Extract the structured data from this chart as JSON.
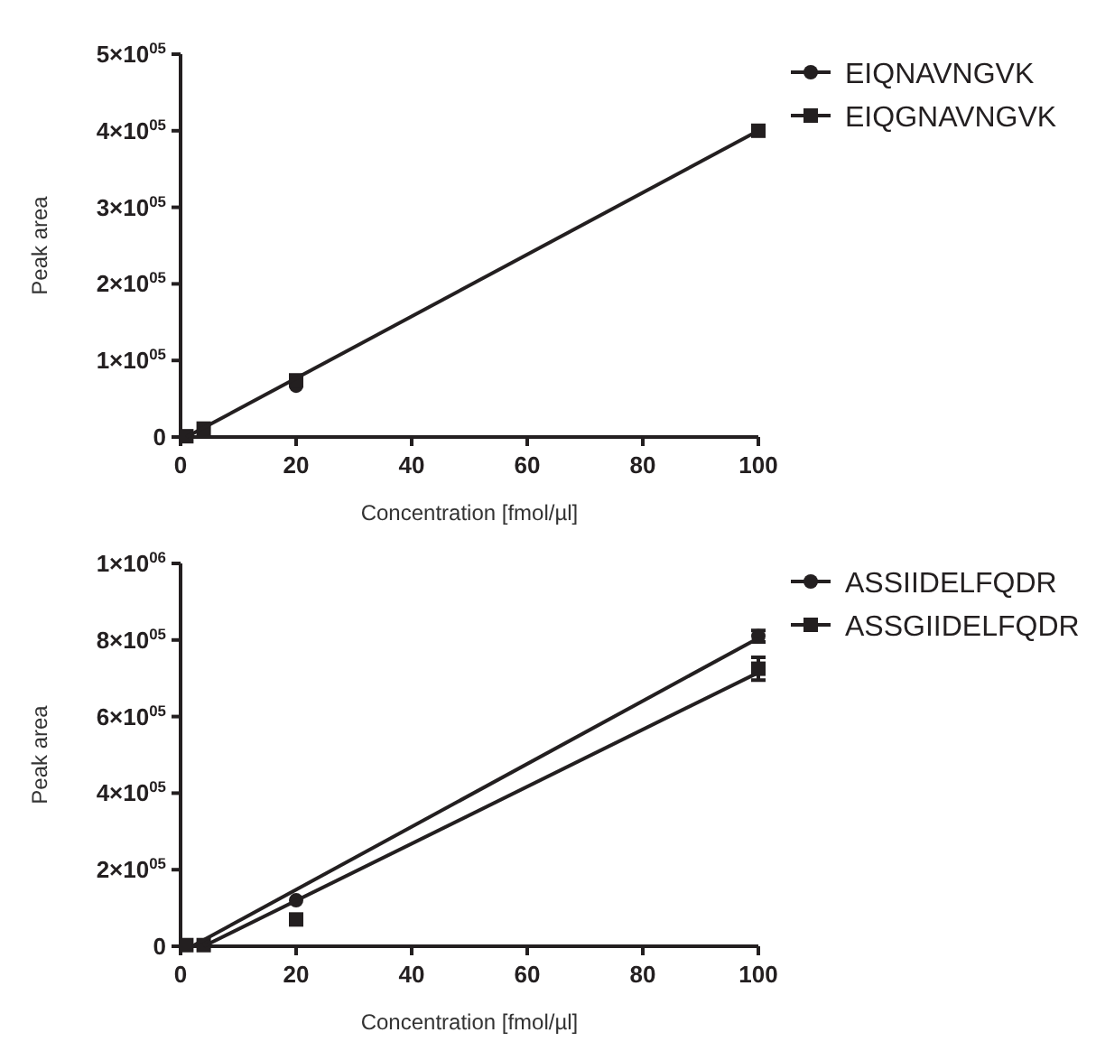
{
  "chart_data": [
    {
      "type": "scatter",
      "xlabel": "Concentration [fmol/µl]",
      "ylabel": "Peak area",
      "xlim": [
        0,
        100
      ],
      "xticks": [
        0,
        20,
        40,
        60,
        80,
        100
      ],
      "ylim": [
        0,
        500000
      ],
      "yticks": [
        {
          "value": 0,
          "label": "0"
        },
        {
          "value": 100000,
          "label": "1×10$^{05}$"
        },
        {
          "value": 200000,
          "label": "2×10$^{05}$"
        },
        {
          "value": 300000,
          "label": "3×10$^{05}$"
        },
        {
          "value": 400000,
          "label": "4×10$^{05}$"
        },
        {
          "value": 500000,
          "label": "5×10$^{05}$"
        }
      ],
      "legend": "top right",
      "series": [
        {
          "name": "EIQNAVNGVK",
          "marker": "circle",
          "color": "#231f20",
          "x": [
            20
          ],
          "values": [
            67000
          ]
        },
        {
          "name": "EIQGNAVNGVK",
          "marker": "square",
          "color": "#231f20",
          "x": [
            1,
            4,
            20,
            100
          ],
          "values": [
            1000,
            11000,
            74000,
            400000
          ]
        },
        {
          "type": "line",
          "color": "#231f20",
          "x": [
            1,
            100
          ],
          "values": [
            0,
            400000
          ]
        }
      ]
    },
    {
      "type": "scatter",
      "xlabel": "Concentration [fmol/µl]",
      "ylabel": "Peak area",
      "xlim": [
        0,
        100
      ],
      "xticks": [
        0,
        20,
        40,
        60,
        80,
        100
      ],
      "ylim": [
        0,
        1000000
      ],
      "yticks": [
        {
          "value": 0,
          "label": "0"
        },
        {
          "value": 200000,
          "label": "2×10$^{05}$"
        },
        {
          "value": 400000,
          "label": "4×10$^{05}$"
        },
        {
          "value": 600000,
          "label": "6×10$^{05}$"
        },
        {
          "value": 800000,
          "label": "8×10$^{05}$"
        },
        {
          "value": 1000000,
          "label": "1×10$^{06}$"
        }
      ],
      "legend": "top right",
      "series": [
        {
          "name": "ASSIIDELFQDR",
          "marker": "circle",
          "color": "#231f20",
          "x": [
            20,
            100
          ],
          "values": [
            120000,
            810000
          ],
          "errors": [
            null,
            15000
          ]
        },
        {
          "name": "ASSGIIDELFQDR",
          "marker": "square",
          "color": "#231f20",
          "x": [
            1,
            4,
            20,
            100
          ],
          "values": [
            3000,
            3000,
            70000,
            725000
          ],
          "errors": [
            null,
            null,
            null,
            30000
          ]
        },
        {
          "type": "line",
          "color": "#231f20",
          "x": [
            2,
            100
          ],
          "values": [
            0,
            805000
          ]
        },
        {
          "type": "line",
          "color": "#231f20",
          "x": [
            4,
            100
          ],
          "values": [
            0,
            715000
          ]
        }
      ]
    }
  ]
}
